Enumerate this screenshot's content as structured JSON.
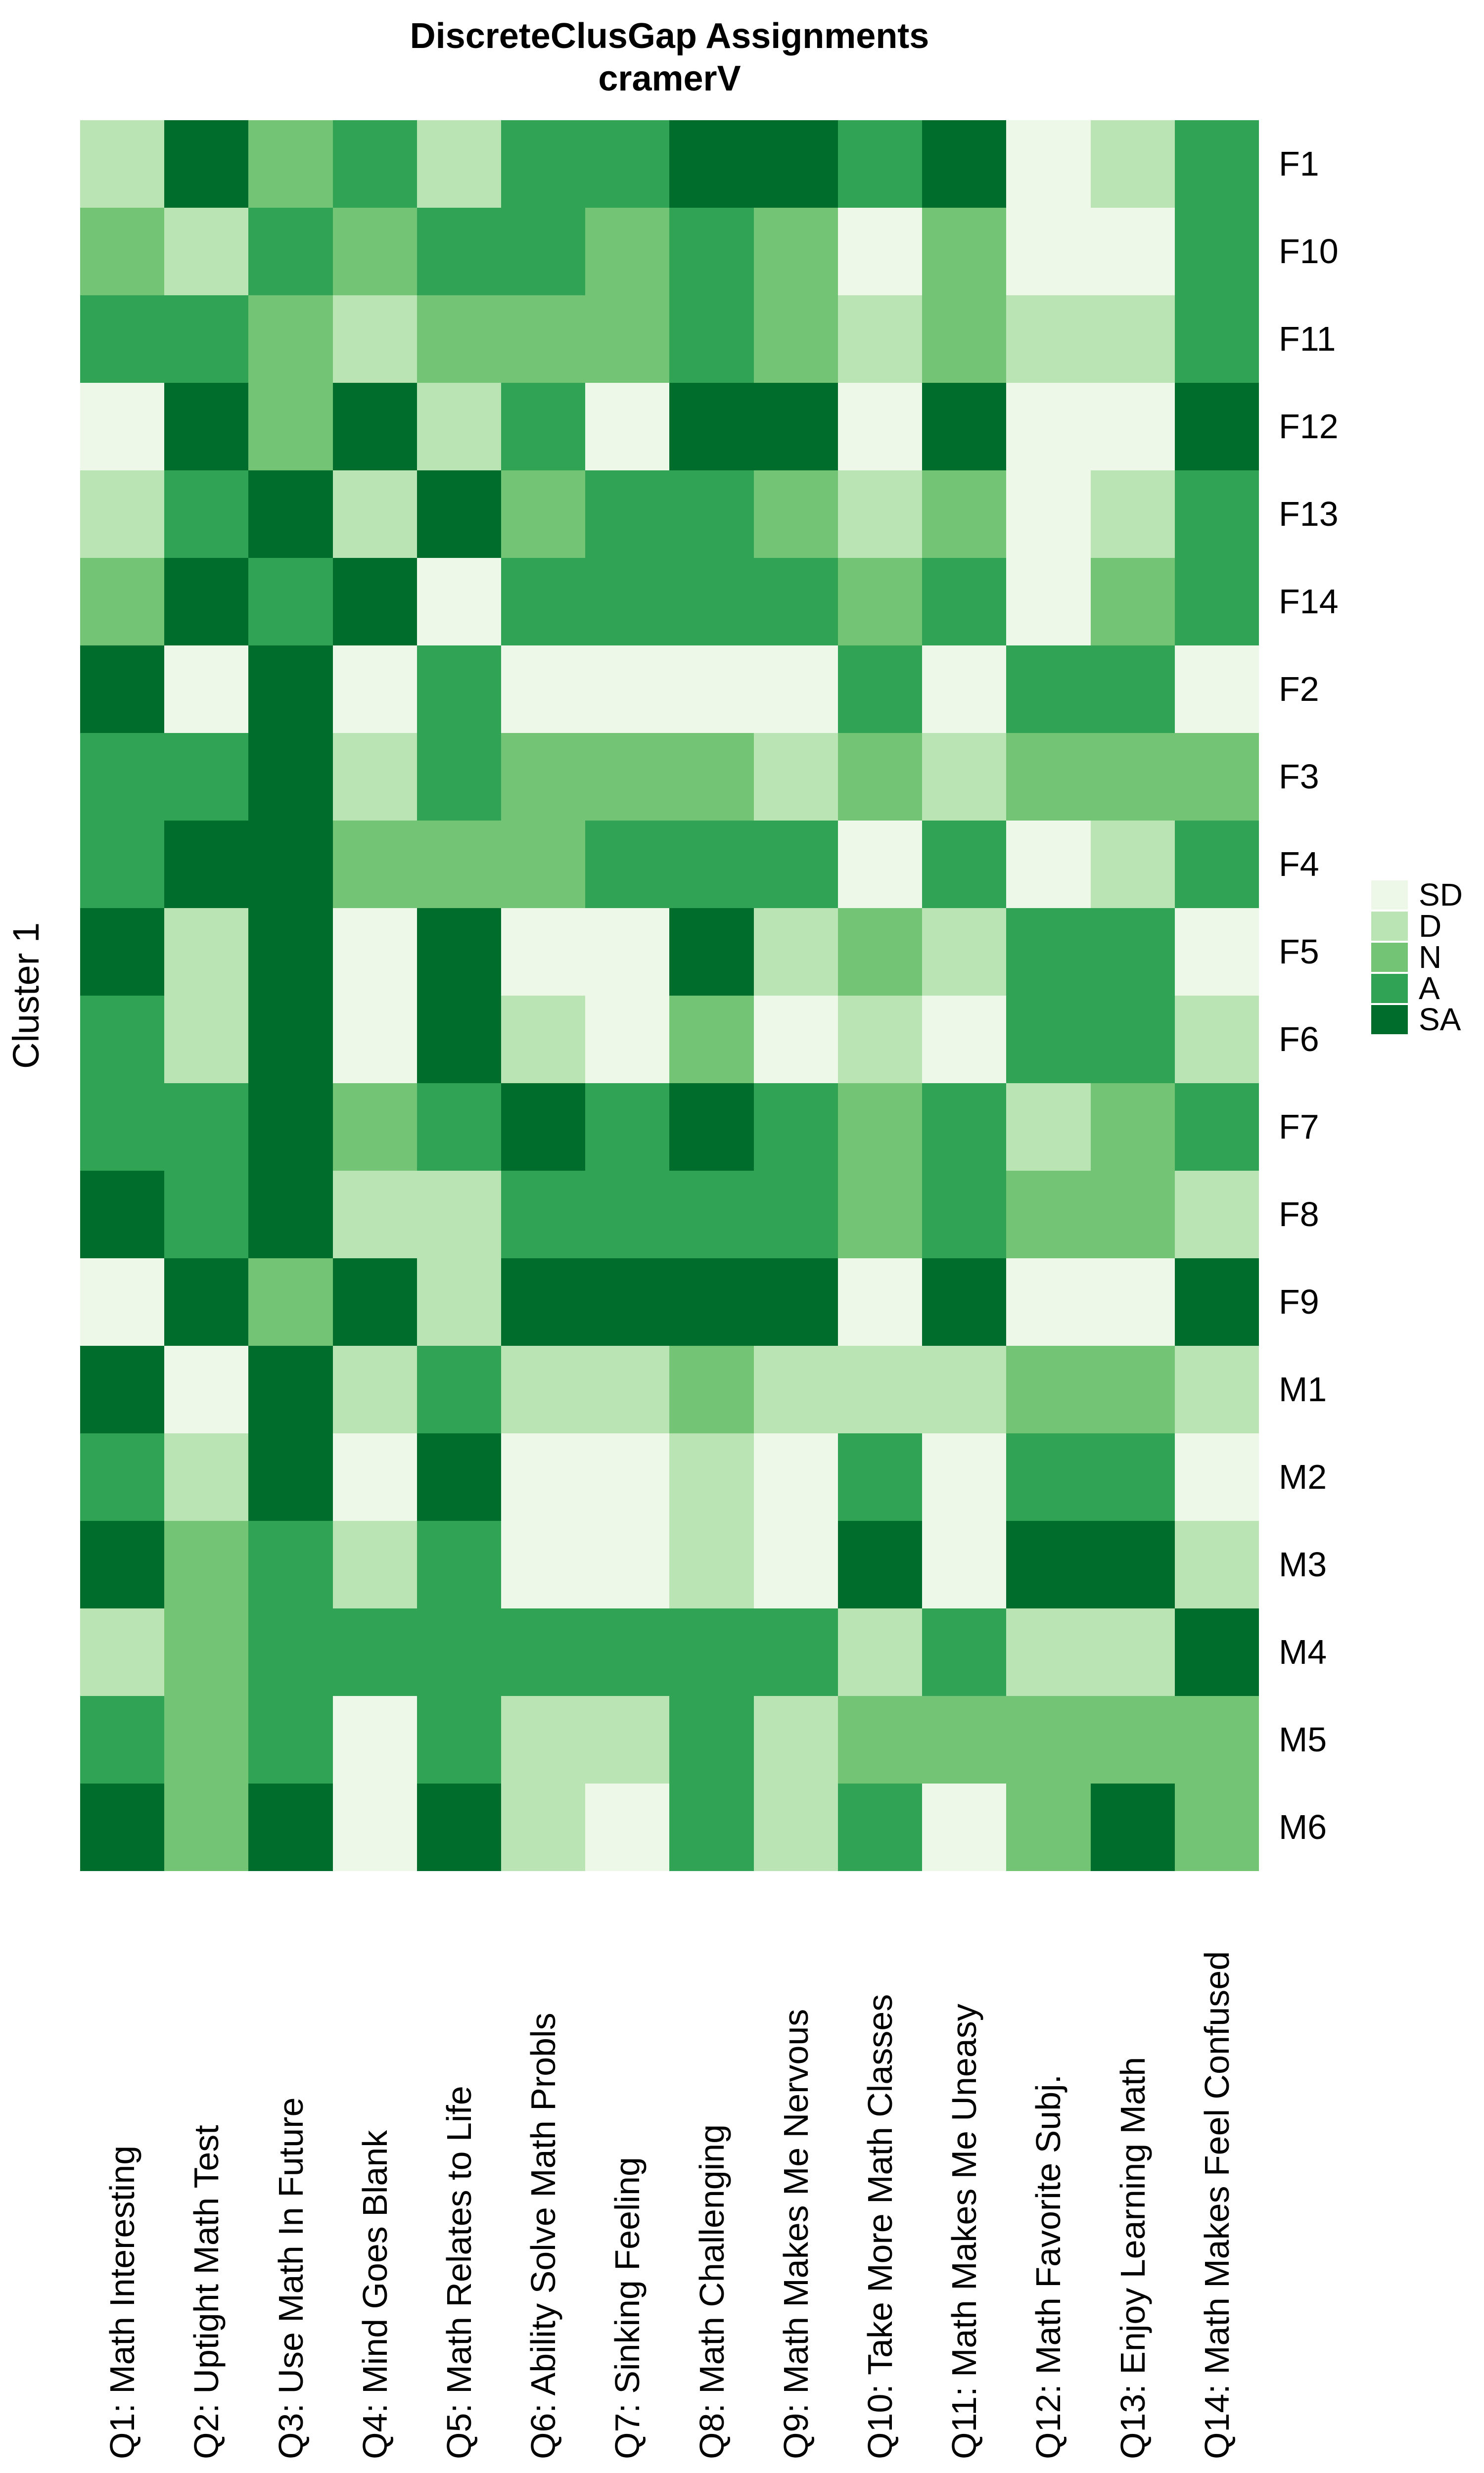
{
  "title": {
    "line1": "DiscreteClusGap Assignments",
    "line2": "cramerV"
  },
  "y_axis_label": "Cluster 1",
  "legend": {
    "position": "right",
    "items": [
      {
        "label": "SD",
        "color": "#EDF8E9"
      },
      {
        "label": "D",
        "color": "#BAE4B3"
      },
      {
        "label": "N",
        "color": "#74C476"
      },
      {
        "label": "A",
        "color": "#31A354"
      },
      {
        "label": "SA",
        "color": "#006D2C"
      }
    ]
  },
  "chart_data": {
    "type": "heatmap",
    "title": "DiscreteClusGap Assignments cramerV",
    "ylabel": "Cluster 1",
    "legend_position": "right",
    "levels": [
      "SD",
      "D",
      "N",
      "A",
      "SA"
    ],
    "level_colors": {
      "SD": "#EDF8E9",
      "D": "#BAE4B3",
      "N": "#74C476",
      "A": "#31A354",
      "SA": "#006D2C"
    },
    "x_categories": [
      "Q1: Math Interesting",
      "Q2: Uptight Math Test",
      "Q3: Use Math In Future",
      "Q4: Mind Goes Blank",
      "Q5: Math Relates to Life",
      "Q6: Ability Solve Math Probls",
      "Q7: Sinking Feeling",
      "Q8: Math Challenging",
      "Q9: Math Makes Me Nervous",
      "Q10: Take More Math Classes",
      "Q11: Math Makes Me Uneasy",
      "Q12: Math Favorite Subj.",
      "Q13: Enjoy Learning Math",
      "Q14: Math Makes Feel Confused"
    ],
    "y_categories": [
      "F1",
      "F10",
      "F11",
      "F12",
      "F13",
      "F14",
      "F2",
      "F3",
      "F4",
      "F5",
      "F6",
      "F7",
      "F8",
      "F9",
      "M1",
      "M2",
      "M3",
      "M4",
      "M5",
      "M6"
    ],
    "values": [
      [
        "D",
        "SA",
        "N",
        "A",
        "D",
        "A",
        "A",
        "SA",
        "SA",
        "A",
        "SA",
        "SD",
        "D",
        "A"
      ],
      [
        "N",
        "D",
        "A",
        "N",
        "A",
        "A",
        "N",
        "A",
        "N",
        "SD",
        "N",
        "SD",
        "SD",
        "A"
      ],
      [
        "A",
        "A",
        "N",
        "D",
        "N",
        "N",
        "N",
        "A",
        "N",
        "D",
        "N",
        "D",
        "D",
        "A"
      ],
      [
        "SD",
        "SA",
        "N",
        "SA",
        "D",
        "A",
        "SD",
        "SA",
        "SA",
        "SD",
        "SA",
        "SD",
        "SD",
        "SA"
      ],
      [
        "D",
        "A",
        "SA",
        "D",
        "SA",
        "N",
        "A",
        "A",
        "N",
        "D",
        "N",
        "SD",
        "D",
        "A"
      ],
      [
        "N",
        "SA",
        "A",
        "SA",
        "SD",
        "A",
        "A",
        "A",
        "A",
        "N",
        "A",
        "SD",
        "N",
        "A"
      ],
      [
        "SA",
        "SD",
        "SA",
        "SD",
        "A",
        "SD",
        "SD",
        "SD",
        "SD",
        "A",
        "SD",
        "A",
        "A",
        "SD"
      ],
      [
        "A",
        "A",
        "SA",
        "D",
        "A",
        "N",
        "N",
        "N",
        "D",
        "N",
        "D",
        "N",
        "N",
        "N"
      ],
      [
        "A",
        "SA",
        "SA",
        "N",
        "N",
        "N",
        "A",
        "A",
        "A",
        "SD",
        "A",
        "SD",
        "D",
        "A"
      ],
      [
        "SA",
        "D",
        "SA",
        "SD",
        "SA",
        "SD",
        "SD",
        "SA",
        "D",
        "N",
        "D",
        "A",
        "A",
        "SD"
      ],
      [
        "A",
        "D",
        "SA",
        "SD",
        "SA",
        "D",
        "SD",
        "N",
        "SD",
        "D",
        "SD",
        "A",
        "A",
        "D"
      ],
      [
        "A",
        "A",
        "SA",
        "N",
        "A",
        "SA",
        "A",
        "SA",
        "A",
        "N",
        "A",
        "D",
        "N",
        "A"
      ],
      [
        "SA",
        "A",
        "SA",
        "D",
        "D",
        "A",
        "A",
        "A",
        "A",
        "N",
        "A",
        "N",
        "N",
        "D"
      ],
      [
        "SD",
        "SA",
        "N",
        "SA",
        "D",
        "SA",
        "SA",
        "SA",
        "SA",
        "SD",
        "SA",
        "SD",
        "SD",
        "SA"
      ],
      [
        "SA",
        "SD",
        "SA",
        "D",
        "A",
        "D",
        "D",
        "N",
        "D",
        "D",
        "D",
        "N",
        "N",
        "D"
      ],
      [
        "A",
        "D",
        "SA",
        "SD",
        "SA",
        "SD",
        "SD",
        "D",
        "SD",
        "A",
        "SD",
        "A",
        "A",
        "SD"
      ],
      [
        "SA",
        "N",
        "A",
        "D",
        "A",
        "SD",
        "SD",
        "D",
        "SD",
        "SA",
        "SD",
        "SA",
        "SA",
        "D"
      ],
      [
        "D",
        "N",
        "A",
        "A",
        "A",
        "A",
        "A",
        "A",
        "A",
        "D",
        "A",
        "D",
        "D",
        "SA"
      ],
      [
        "A",
        "N",
        "A",
        "SD",
        "A",
        "D",
        "D",
        "A",
        "D",
        "N",
        "N",
        "N",
        "N",
        "N"
      ],
      [
        "SA",
        "N",
        "SA",
        "SD",
        "SA",
        "D",
        "SD",
        "A",
        "D",
        "A",
        "SD",
        "N",
        "SA",
        "N"
      ]
    ]
  }
}
